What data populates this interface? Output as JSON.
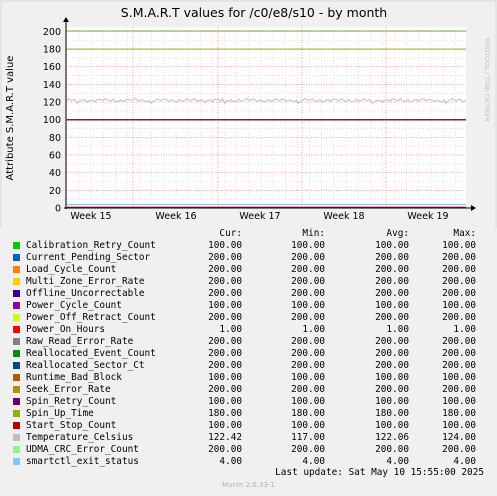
{
  "chart_data": {
    "type": "line",
    "title": "S.M.A.R.T values for /c0/e8/s10 - by month",
    "ylabel": "Attribute S.M.A.R.T value",
    "xlabel": "",
    "x_ticks": [
      "Week 15",
      "Week 16",
      "Week 17",
      "Week 18",
      "Week 19"
    ],
    "y_ticks": [
      0,
      20,
      40,
      60,
      80,
      100,
      120,
      140,
      160,
      180,
      200
    ],
    "ylim": [
      0,
      205
    ],
    "grid": true,
    "legend_position": "below",
    "side_label": "RRDTOOL / TOBI OETIKER",
    "columns": [
      "Cur:",
      "Min:",
      "Avg:",
      "Max:"
    ],
    "series": [
      {
        "name": "Calibration_Retry_Count",
        "color": "#00cc00",
        "cur": "100.00",
        "min": "100.00",
        "avg": "100.00",
        "max": "100.00",
        "value": 100
      },
      {
        "name": "Current_Pending_Sector",
        "color": "#0066b3",
        "cur": "200.00",
        "min": "200.00",
        "avg": "200.00",
        "max": "200.00",
        "value": 200
      },
      {
        "name": "Load_Cycle_Count",
        "color": "#ff8000",
        "cur": "200.00",
        "min": "200.00",
        "avg": "200.00",
        "max": "200.00",
        "value": 200
      },
      {
        "name": "Multi_Zone_Error_Rate",
        "color": "#ffcc00",
        "cur": "200.00",
        "min": "200.00",
        "avg": "200.00",
        "max": "200.00",
        "value": 200
      },
      {
        "name": "Offline_Uncorrectable",
        "color": "#330099",
        "cur": "200.00",
        "min": "200.00",
        "avg": "200.00",
        "max": "200.00",
        "value": 200
      },
      {
        "name": "Power_Cycle_Count",
        "color": "#990099",
        "cur": "100.00",
        "min": "100.00",
        "avg": "100.00",
        "max": "100.00",
        "value": 100
      },
      {
        "name": "Power_Off_Retract_Count",
        "color": "#ccff00",
        "cur": "200.00",
        "min": "200.00",
        "avg": "200.00",
        "max": "200.00",
        "value": 200
      },
      {
        "name": "Power_On_Hours",
        "color": "#ff0000",
        "cur": "1.00",
        "min": "1.00",
        "avg": "1.00",
        "max": "1.00",
        "value": 1
      },
      {
        "name": "Raw_Read_Error_Rate",
        "color": "#808080",
        "cur": "200.00",
        "min": "200.00",
        "avg": "200.00",
        "max": "200.00",
        "value": 200
      },
      {
        "name": "Reallocated_Event_Count",
        "color": "#008f00",
        "cur": "200.00",
        "min": "200.00",
        "avg": "200.00",
        "max": "200.00",
        "value": 200
      },
      {
        "name": "Reallocated_Sector_Ct",
        "color": "#00487d",
        "cur": "200.00",
        "min": "200.00",
        "avg": "200.00",
        "max": "200.00",
        "value": 200
      },
      {
        "name": "Runtime_Bad_Block",
        "color": "#b35a00",
        "cur": "100.00",
        "min": "100.00",
        "avg": "100.00",
        "max": "100.00",
        "value": 100
      },
      {
        "name": "Seek_Error_Rate",
        "color": "#b38f00",
        "cur": "200.00",
        "min": "200.00",
        "avg": "200.00",
        "max": "200.00",
        "value": 200
      },
      {
        "name": "Spin_Retry_Count",
        "color": "#6b006b",
        "cur": "100.00",
        "min": "100.00",
        "avg": "100.00",
        "max": "100.00",
        "value": 100
      },
      {
        "name": "Spin_Up_Time",
        "color": "#8fb300",
        "cur": "180.00",
        "min": "180.00",
        "avg": "180.00",
        "max": "180.00",
        "value": 180
      },
      {
        "name": "Start_Stop_Count",
        "color": "#b30000",
        "cur": "100.00",
        "min": "100.00",
        "avg": "100.00",
        "max": "100.00",
        "value": 100
      },
      {
        "name": "Temperature_Celsius",
        "color": "#bebebe",
        "cur": "122.42",
        "min": "117.00",
        "avg": "122.06",
        "max": "124.00",
        "value": 122
      },
      {
        "name": "UDMA_CRC_Error_Count",
        "color": "#80ff80",
        "cur": "200.00",
        "min": "200.00",
        "avg": "200.00",
        "max": "200.00",
        "value": 200
      },
      {
        "name": "smartctl_exit_status",
        "color": "#80c9ff",
        "cur": "4.00",
        "min": "4.00",
        "avg": "4.00",
        "max": "4.00",
        "value": 4
      }
    ]
  },
  "footer": {
    "last_update": "Last update:  Sat May 10 15:55:00 2025",
    "munin_version": "Munin 2.0.33-1"
  }
}
